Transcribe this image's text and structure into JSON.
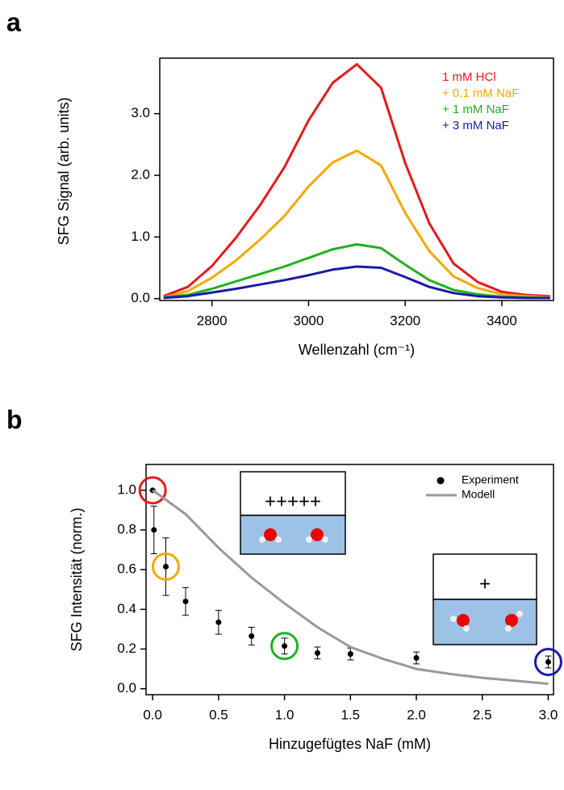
{
  "chart_data": [
    {
      "type": "line",
      "panel_label": "a",
      "x_label": "Wellenzahl (cm⁻¹)",
      "y_label": "SFG Signal (arb. units)",
      "xlim": [
        2692,
        3507
      ],
      "ylim": [
        -0.03,
        3.9
      ],
      "xticks": [
        2800,
        3000,
        3200,
        3400
      ],
      "yticks": [
        {
          "value": 0,
          "label": "0.0"
        },
        {
          "value": 1,
          "label": "1.0"
        },
        {
          "value": 2,
          "label": "2.0"
        },
        {
          "value": 3,
          "label": "3.0"
        }
      ],
      "x": [
        2700,
        2750,
        2800,
        2850,
        2900,
        2950,
        3000,
        3050,
        3100,
        3150,
        3200,
        3250,
        3300,
        3350,
        3400,
        3450,
        3500
      ],
      "series": [
        {
          "name": "1 mM HCl",
          "color": "#e31a1c",
          "values": [
            0.04,
            0.19,
            0.53,
            0.99,
            1.52,
            2.13,
            2.89,
            3.5,
            3.8,
            3.42,
            2.2,
            1.22,
            0.57,
            0.27,
            0.11,
            0.06,
            0.04
          ]
        },
        {
          "name": "+ 0.1 mM NaF",
          "color": "#f5a800",
          "values": [
            0.02,
            0.12,
            0.34,
            0.62,
            0.96,
            1.34,
            1.82,
            2.21,
            2.4,
            2.16,
            1.39,
            0.77,
            0.36,
            0.17,
            0.07,
            0.04,
            0.02
          ]
        },
        {
          "name": "+ 1 mM NaF",
          "color": "#22b01e",
          "values": [
            0.02,
            0.06,
            0.16,
            0.28,
            0.4,
            0.52,
            0.66,
            0.8,
            0.88,
            0.82,
            0.55,
            0.3,
            0.14,
            0.07,
            0.03,
            0.02,
            0.01
          ]
        },
        {
          "name": "+ 3 mM NaF",
          "color": "#1a1aa8",
          "values": [
            0.01,
            0.04,
            0.1,
            0.16,
            0.23,
            0.3,
            0.38,
            0.47,
            0.52,
            0.5,
            0.35,
            0.19,
            0.09,
            0.04,
            0.02,
            0.01,
            0.01
          ]
        }
      ]
    },
    {
      "type": "scatter",
      "panel_label": "b",
      "x_label": "Hinzugefügtes NaF (mM)",
      "y_label": "SFG Intensität (norm.)",
      "xlim": [
        -0.05,
        3.04
      ],
      "ylim": [
        -0.03,
        1.13
      ],
      "xticks": [
        {
          "value": 0,
          "label": "0.0"
        },
        {
          "value": 0.5,
          "label": "0.5"
        },
        {
          "value": 1,
          "label": "1.0"
        },
        {
          "value": 1.5,
          "label": "1.5"
        },
        {
          "value": 2,
          "label": "2.0"
        },
        {
          "value": 2.5,
          "label": "2.5"
        },
        {
          "value": 3,
          "label": "3.0"
        }
      ],
      "yticks": [
        {
          "value": 0,
          "label": "0.0"
        },
        {
          "value": 0.2,
          "label": "0.2"
        },
        {
          "value": 0.4,
          "label": "0.4"
        },
        {
          "value": 0.6,
          "label": "0.6"
        },
        {
          "value": 0.8,
          "label": "0.8"
        },
        {
          "value": 1,
          "label": "1.0"
        }
      ],
      "insets": [
        {
          "label": "+++++"
        },
        {
          "label": "+"
        }
      ],
      "series": [
        {
          "name": "Experiment",
          "color": "#000000",
          "x": [
            0,
            0.01,
            0.1,
            0.25,
            0.5,
            0.75,
            1.0,
            1.25,
            1.5,
            2.0,
            3.0
          ],
          "values": [
            1.0,
            0.8,
            0.615,
            0.44,
            0.335,
            0.265,
            0.215,
            0.18,
            0.175,
            0.155,
            0.135
          ],
          "errors": [
            0,
            0.12,
            0.145,
            0.07,
            0.06,
            0.045,
            0.04,
            0.03,
            0.03,
            0.03,
            0.03
          ]
        },
        {
          "name": "Modell",
          "type": "line",
          "color": "#999999",
          "x": [
            0,
            0.25,
            0.5,
            0.75,
            1.0,
            1.25,
            1.5,
            1.75,
            2.0,
            2.25,
            2.5,
            2.75,
            3.0
          ],
          "values": [
            1.0,
            0.88,
            0.71,
            0.56,
            0.43,
            0.31,
            0.21,
            0.15,
            0.1,
            0.075,
            0.055,
            0.04,
            0.025
          ]
        }
      ]
    }
  ]
}
